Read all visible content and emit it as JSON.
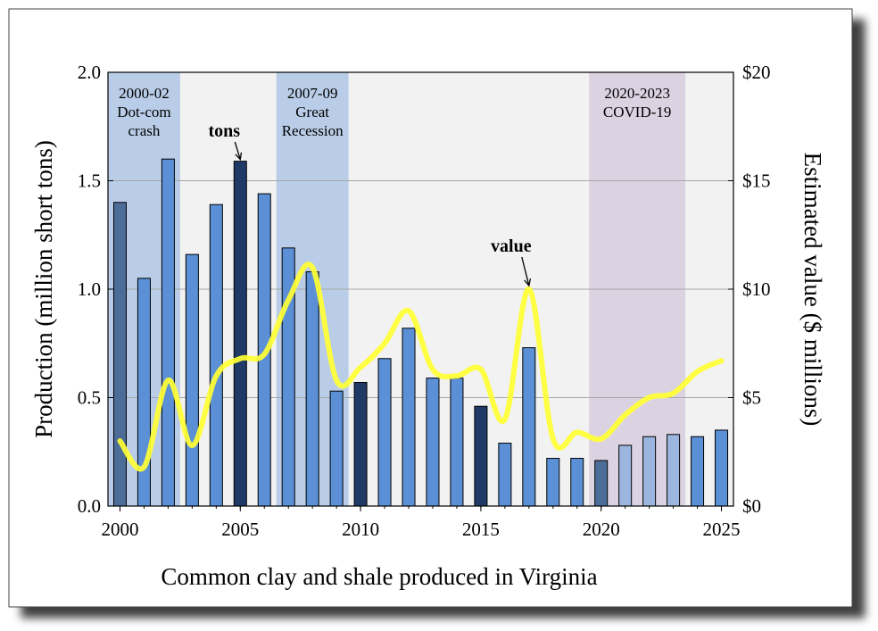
{
  "chart_data": {
    "type": "bar",
    "title": "Common clay and shale produced in Virginia",
    "ylabel": "Production (million short tons)",
    "y2label": "Estimated value ($ millions)",
    "ylim": [
      0,
      2.0
    ],
    "y2lim": [
      0,
      20
    ],
    "xlim": [
      2000,
      2025
    ],
    "yticks": [
      0.0,
      0.5,
      1.0,
      1.5,
      2.0
    ],
    "ytick_labels": [
      "0.0",
      "0.5",
      "1.0",
      "1.5",
      "2.0"
    ],
    "y2ticks": [
      0,
      5,
      10,
      15,
      20
    ],
    "y2tick_labels": [
      "$0",
      "$5",
      "$10",
      "$15",
      "$20"
    ],
    "xticks": [
      2000,
      2005,
      2010,
      2015,
      2020,
      2025
    ],
    "xtick_labels": [
      "2000",
      "2005",
      "2010",
      "2015",
      "2020",
      "2025"
    ],
    "grid": true,
    "years": [
      2000,
      2001,
      2002,
      2003,
      2004,
      2005,
      2006,
      2007,
      2008,
      2009,
      2010,
      2011,
      2012,
      2013,
      2014,
      2015,
      2016,
      2017,
      2018,
      2019,
      2020,
      2021,
      2022,
      2023,
      2024,
      2025
    ],
    "tons": [
      1.4,
      1.05,
      1.6,
      1.16,
      1.39,
      1.59,
      1.44,
      1.19,
      1.08,
      0.53,
      0.57,
      0.68,
      0.82,
      0.59,
      0.59,
      0.46,
      0.29,
      0.73,
      0.22,
      0.22,
      0.21,
      0.28,
      0.32,
      0.33,
      0.32,
      0.35
    ],
    "value": [
      3.0,
      1.8,
      5.8,
      2.8,
      6.0,
      6.8,
      7.0,
      9.5,
      11.0,
      5.8,
      6.4,
      7.5,
      9.0,
      6.3,
      6.0,
      6.3,
      4.0,
      10.0,
      3.1,
      3.4,
      3.1,
      4.2,
      5.0,
      5.2,
      6.2,
      6.7
    ],
    "bar_colors": {
      "medium": "#5b8fd6",
      "dark": "#1f3a66",
      "slate": "#4d6d99",
      "light": "#9ab6de"
    },
    "bar_color_keys": [
      "slate",
      "medium",
      "medium",
      "medium",
      "medium",
      "dark",
      "medium",
      "medium",
      "medium",
      "medium",
      "dark",
      "medium",
      "medium",
      "medium",
      "medium",
      "dark",
      "medium",
      "medium",
      "medium",
      "medium",
      "slate",
      "light",
      "light",
      "light",
      "medium",
      "medium"
    ],
    "value_line_color": "#ffff33",
    "plot_background": "#f2f2f2",
    "shaded_periods": [
      {
        "start": 2000,
        "end": 2002,
        "label_lines": [
          "2000-02",
          "Dot-com",
          "crash"
        ],
        "color": "#b9cde8"
      },
      {
        "start": 2007,
        "end": 2009,
        "label_lines": [
          "2007-09",
          "Great",
          "Recession"
        ],
        "color": "#b9cde8"
      },
      {
        "start": 2020,
        "end": 2023,
        "label_lines": [
          "2020-2023",
          "COVID-19"
        ],
        "color": "#dcd3e2"
      }
    ],
    "annotations": [
      {
        "text": "tons",
        "year": 2005
      },
      {
        "text": "value",
        "year": 2017
      }
    ]
  }
}
